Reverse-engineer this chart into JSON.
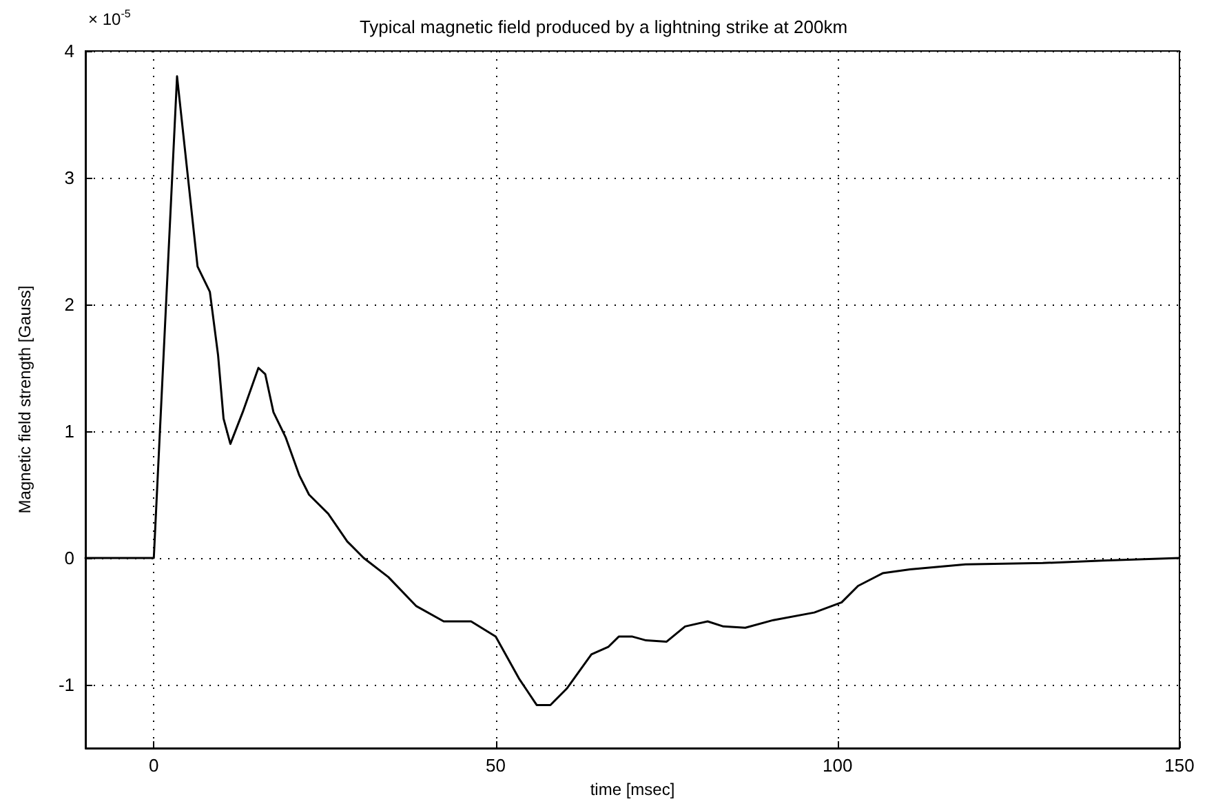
{
  "chart_data": {
    "type": "line",
    "title": "Typical magnetic field produced by a lightning strike at 200km",
    "xlabel": "time [msec]",
    "ylabel": "Magnetic field strength [Gauss]",
    "annotations": [
      "× 10$^{-5}$"
    ],
    "xlim": [
      -10,
      150
    ],
    "xticks": [
      0,
      50,
      100,
      150
    ],
    "ylim": [
      -1.5,
      4
    ],
    "yticks": [
      -1,
      0,
      1,
      2,
      3,
      4
    ],
    "grid": true,
    "marker": "none",
    "line_style": "solid",
    "series": [
      {
        "color": "#000000",
        "x": [
          -10,
          0,
          3.4,
          6.4,
          8.2,
          9.4,
          10.2,
          11.2,
          13,
          15.3,
          16.3,
          17.5,
          19.3,
          21.3,
          22.7,
          25.5,
          28.3,
          30.7,
          34.3,
          38.4,
          42.4,
          46.4,
          50,
          53.4,
          56,
          58,
          60.4,
          64,
          66.5,
          68,
          70,
          72,
          75,
          77.7,
          81,
          83.3,
          86.5,
          90.6,
          96.6,
          100.6,
          103,
          106.6,
          110.6,
          118.7,
          130,
          138.8,
          150
        ],
        "values": [
          0,
          0,
          3.8,
          2.3,
          2.1,
          1.6,
          1.1,
          0.9,
          1.15,
          1.5,
          1.45,
          1.15,
          0.95,
          0.65,
          0.5,
          0.35,
          0.13,
          0,
          -0.15,
          -0.38,
          -0.5,
          -0.5,
          -0.62,
          -0.95,
          -1.16,
          -1.16,
          -1.03,
          -0.76,
          -0.7,
          -0.62,
          -0.62,
          -0.65,
          -0.66,
          -0.54,
          -0.5,
          -0.54,
          -0.55,
          -0.49,
          -0.43,
          -0.35,
          -0.22,
          -0.12,
          -0.09,
          -0.05,
          -0.04,
          -0.02,
          0
        ]
      }
    ]
  }
}
